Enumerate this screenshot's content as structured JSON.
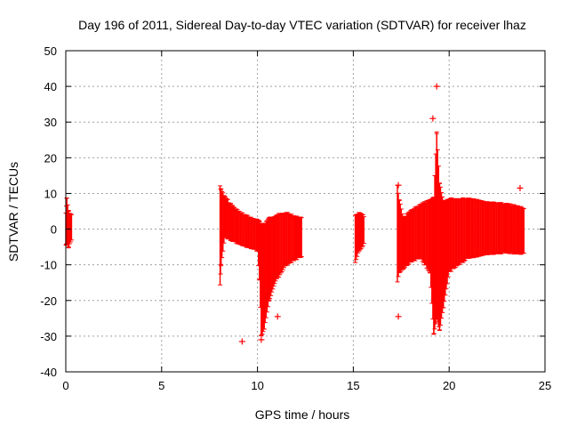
{
  "colors": {
    "series": "#ff0000",
    "grid": "#a0a0a0",
    "axis": "#000000",
    "background": "#ffffff"
  },
  "chart_data": {
    "type": "scatter",
    "title": "Day 196 of 2011, Sidereal Day-to-day VTEC variation (SDTVAR) for receiver lhaz",
    "xlabel": "GPS time / hours",
    "ylabel": "SDTVAR / TECUs",
    "xlim": [
      0,
      25
    ],
    "ylim": [
      -40,
      50
    ],
    "x_ticks": [
      0,
      5,
      10,
      15,
      20,
      25
    ],
    "y_ticks": [
      -40,
      -30,
      -20,
      -10,
      0,
      10,
      20,
      30,
      40,
      50
    ],
    "x_tick_labels": [
      "0",
      "5",
      "10",
      "15",
      "20",
      "25"
    ],
    "y_tick_labels": [
      "-40",
      "-30",
      "-20",
      "-10",
      "0",
      "10",
      "20",
      "30",
      "40",
      "50"
    ],
    "grid": true,
    "marker": "+",
    "series": [
      {
        "name": "lhaz",
        "envelope": [
          {
            "x": 0.0,
            "low": -4.5,
            "high": 4.5
          },
          {
            "x": 0.05,
            "low": -4,
            "high": 8.5
          },
          {
            "x": 0.15,
            "low": -5,
            "high": 5
          },
          {
            "x": 0.3,
            "low": -3,
            "high": 4
          },
          {
            "x": 8.05,
            "low": -15.5,
            "high": 12
          },
          {
            "x": 8.1,
            "low": -10,
            "high": 11
          },
          {
            "x": 8.3,
            "low": -2,
            "high": 9
          },
          {
            "x": 8.6,
            "low": -3,
            "high": 7
          },
          {
            "x": 9.0,
            "low": -4,
            "high": 5
          },
          {
            "x": 9.5,
            "low": -5,
            "high": 3.5
          },
          {
            "x": 10.0,
            "low": -6,
            "high": 2.5
          },
          {
            "x": 10.1,
            "low": -14,
            "high": 2
          },
          {
            "x": 10.2,
            "low": -30,
            "high": 1.5
          },
          {
            "x": 10.35,
            "low": -28,
            "high": 1.5
          },
          {
            "x": 10.6,
            "low": -20,
            "high": 3
          },
          {
            "x": 11.0,
            "low": -14,
            "high": 4
          },
          {
            "x": 11.5,
            "low": -10,
            "high": 4.5
          },
          {
            "x": 12.0,
            "low": -8.5,
            "high": 3.5
          },
          {
            "x": 12.3,
            "low": -7.5,
            "high": 3
          },
          {
            "x": 15.1,
            "low": -9.5,
            "high": 4
          },
          {
            "x": 15.3,
            "low": -6,
            "high": 4.5
          },
          {
            "x": 15.55,
            "low": -4,
            "high": 3.5
          },
          {
            "x": 17.3,
            "low": -15,
            "high": 12.5
          },
          {
            "x": 17.4,
            "low": -12,
            "high": 8
          },
          {
            "x": 17.6,
            "low": -11,
            "high": 3
          },
          {
            "x": 18.0,
            "low": -9,
            "high": 5
          },
          {
            "x": 18.5,
            "low": -8,
            "high": 7
          },
          {
            "x": 19.0,
            "low": -12,
            "high": 8
          },
          {
            "x": 19.2,
            "low": -29.5,
            "high": 9
          },
          {
            "x": 19.35,
            "low": -25,
            "high": 27
          },
          {
            "x": 19.5,
            "low": -28.5,
            "high": 13
          },
          {
            "x": 19.7,
            "low": -22,
            "high": 8
          },
          {
            "x": 20.0,
            "low": -12,
            "high": 8.5
          },
          {
            "x": 21.0,
            "low": -8,
            "high": 8.5
          },
          {
            "x": 22.0,
            "low": -7,
            "high": 7.5
          },
          {
            "x": 23.0,
            "low": -6.5,
            "high": 7
          },
          {
            "x": 23.9,
            "low": -7,
            "high": 6
          }
        ],
        "outliers": [
          {
            "x": 9.2,
            "y": -31.5
          },
          {
            "x": 10.2,
            "y": -31
          },
          {
            "x": 11.05,
            "y": -24.5
          },
          {
            "x": 17.35,
            "y": -24.5
          },
          {
            "x": 17.35,
            "y": 12.3
          },
          {
            "x": 19.15,
            "y": 31
          },
          {
            "x": 19.35,
            "y": 40
          },
          {
            "x": 23.7,
            "y": 11.5
          }
        ]
      }
    ]
  }
}
